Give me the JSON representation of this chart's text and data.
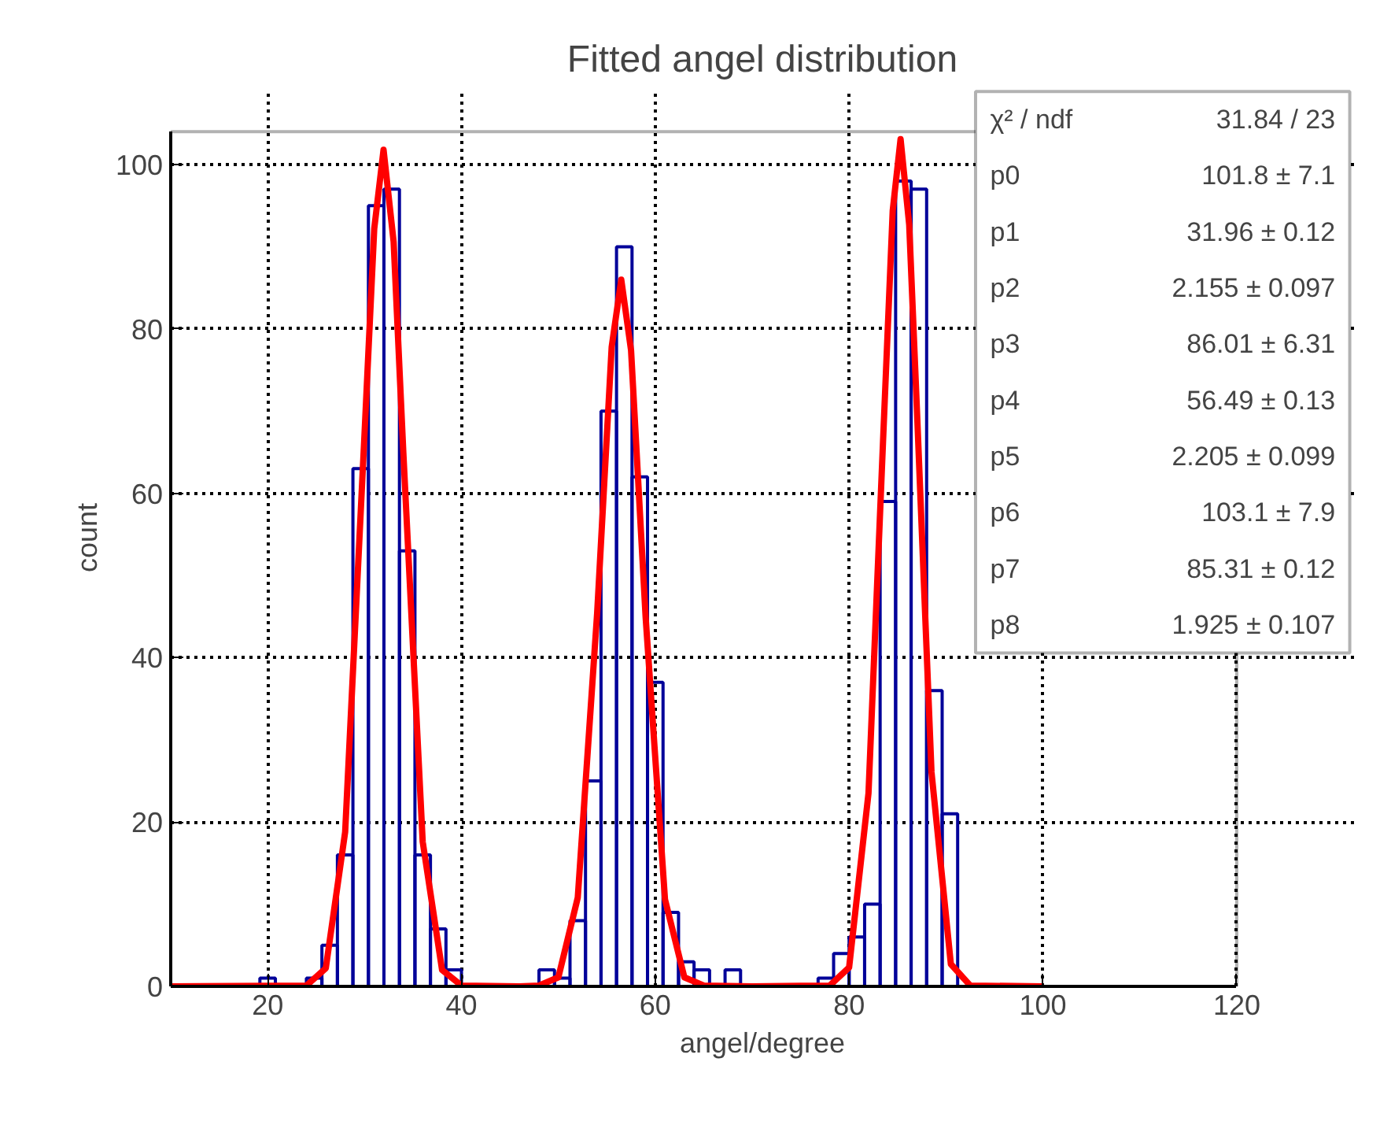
{
  "chart_data": {
    "type": "histogram",
    "title": "Fitted angel distribution",
    "xlabel": "angel/degree",
    "ylabel": "count",
    "series": [
      {
        "color": "#000099",
        "bins": [
          19.2,
          20.8,
          22.4,
          24.0,
          25.6,
          27.2,
          28.8,
          30.4,
          32.0,
          33.6,
          35.2,
          36.8,
          38.4,
          40.0,
          41.6,
          43.2,
          44.8,
          46.4,
          48.0,
          49.6,
          51.2,
          52.8,
          54.4,
          56.0,
          57.6,
          59.2,
          60.8,
          62.4,
          64.0,
          65.6,
          67.2,
          68.8,
          70.4,
          72.0,
          73.6,
          75.2,
          76.8,
          78.4,
          80.0,
          81.6,
          83.2,
          84.8,
          86.4,
          88.0,
          89.6,
          91.2
        ],
        "values": [
          1,
          0,
          0,
          1,
          5,
          16,
          63,
          95,
          97,
          53,
          16,
          7,
          2,
          0,
          0,
          0,
          0,
          0,
          2,
          1,
          8,
          25,
          70,
          90,
          62,
          37,
          9,
          3,
          2,
          0,
          2,
          0,
          0,
          0,
          0,
          0,
          1,
          4,
          6,
          10,
          59,
          98,
          97,
          36,
          21
        ]
      },
      {
        "type": "line",
        "color": "#ff0000",
        "x": [
          10,
          24,
          26,
          28,
          30,
          31,
          31.96,
          33,
          34,
          36,
          38,
          40,
          46,
          48,
          50,
          52,
          54,
          55.5,
          56.49,
          57.5,
          59,
          61,
          63,
          65,
          70,
          78,
          80,
          82,
          83.5,
          84.5,
          85.31,
          86.2,
          87,
          88.5,
          90.5,
          92.5,
          100
        ],
        "values": [
          0,
          0.1,
          2.2,
          18.8,
          67.3,
          92.2,
          101.8,
          90.6,
          65.0,
          17.6,
          2.0,
          0.1,
          0,
          0.1,
          1.1,
          10.8,
          45.4,
          77.8,
          86.0,
          77.4,
          45.0,
          10.6,
          1.1,
          0.1,
          0,
          0.1,
          2.3,
          23.5,
          66.3,
          94.4,
          103.1,
          92.7,
          70.1,
          26.1,
          2.7,
          0.1,
          0
        ]
      }
    ],
    "xlim": [
      10,
      120
    ],
    "ylim": [
      0,
      104
    ],
    "xticks": [
      20,
      40,
      60,
      80,
      100,
      120
    ],
    "yticks": [
      0,
      20,
      40,
      60,
      80,
      100
    ],
    "grid": true,
    "annotations": [
      "χ² / ndf",
      "31.84 / 23",
      "p0",
      "101.8 ± 7.1",
      "p1",
      "31.96 ± 0.12",
      "p2",
      "2.155 ± 0.097",
      "p3",
      "86.01 ± 6.31",
      "p4",
      "56.49 ± 0.13",
      "p5",
      "2.205 ± 0.099",
      "p6",
      "103.1 ± 7.9",
      "p7",
      "85.31 ± 0.12",
      "p8",
      "1.925 ± 0.107"
    ]
  }
}
